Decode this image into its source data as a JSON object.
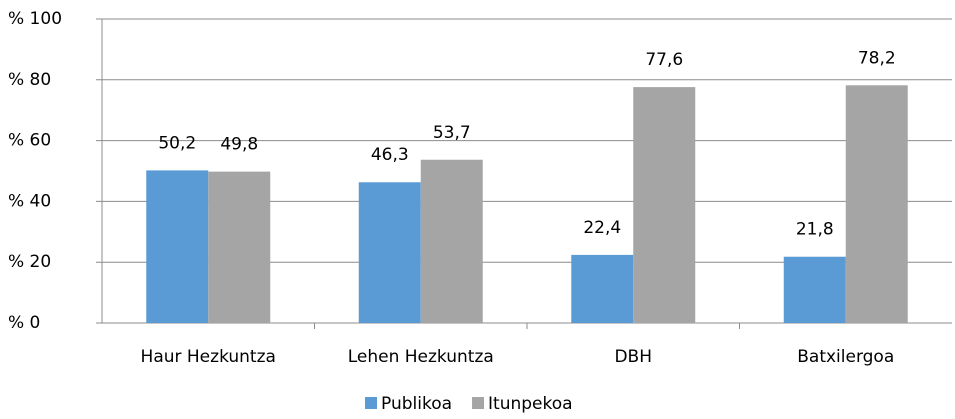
{
  "chart_data": {
    "type": "bar",
    "categories": [
      "Haur Hezkuntza",
      "Lehen Hezkuntza",
      "DBH",
      "Batxilergoa"
    ],
    "series": [
      {
        "name": "Publikoa",
        "color": "#5b9bd5",
        "values": [
          50.2,
          46.3,
          22.4,
          21.8
        ],
        "value_labels": [
          "50,2",
          "46,3",
          "22,4",
          "21,8"
        ]
      },
      {
        "name": "Itunpekoa",
        "color": "#a5a5a5",
        "values": [
          49.8,
          53.7,
          77.6,
          78.2
        ],
        "value_labels": [
          "49,8",
          "53,7",
          "77,6",
          "78,2"
        ]
      }
    ],
    "ylim": [
      0,
      100
    ],
    "yticks": [
      {
        "value": 0,
        "label": "% 0"
      },
      {
        "value": 20,
        "label": "% 20"
      },
      {
        "value": 40,
        "label": "% 40"
      },
      {
        "value": 60,
        "label": "% 60"
      },
      {
        "value": 80,
        "label": "% 80"
      },
      {
        "value": 100,
        "label": "% 100"
      }
    ],
    "grid": true,
    "legend": "bottom"
  }
}
